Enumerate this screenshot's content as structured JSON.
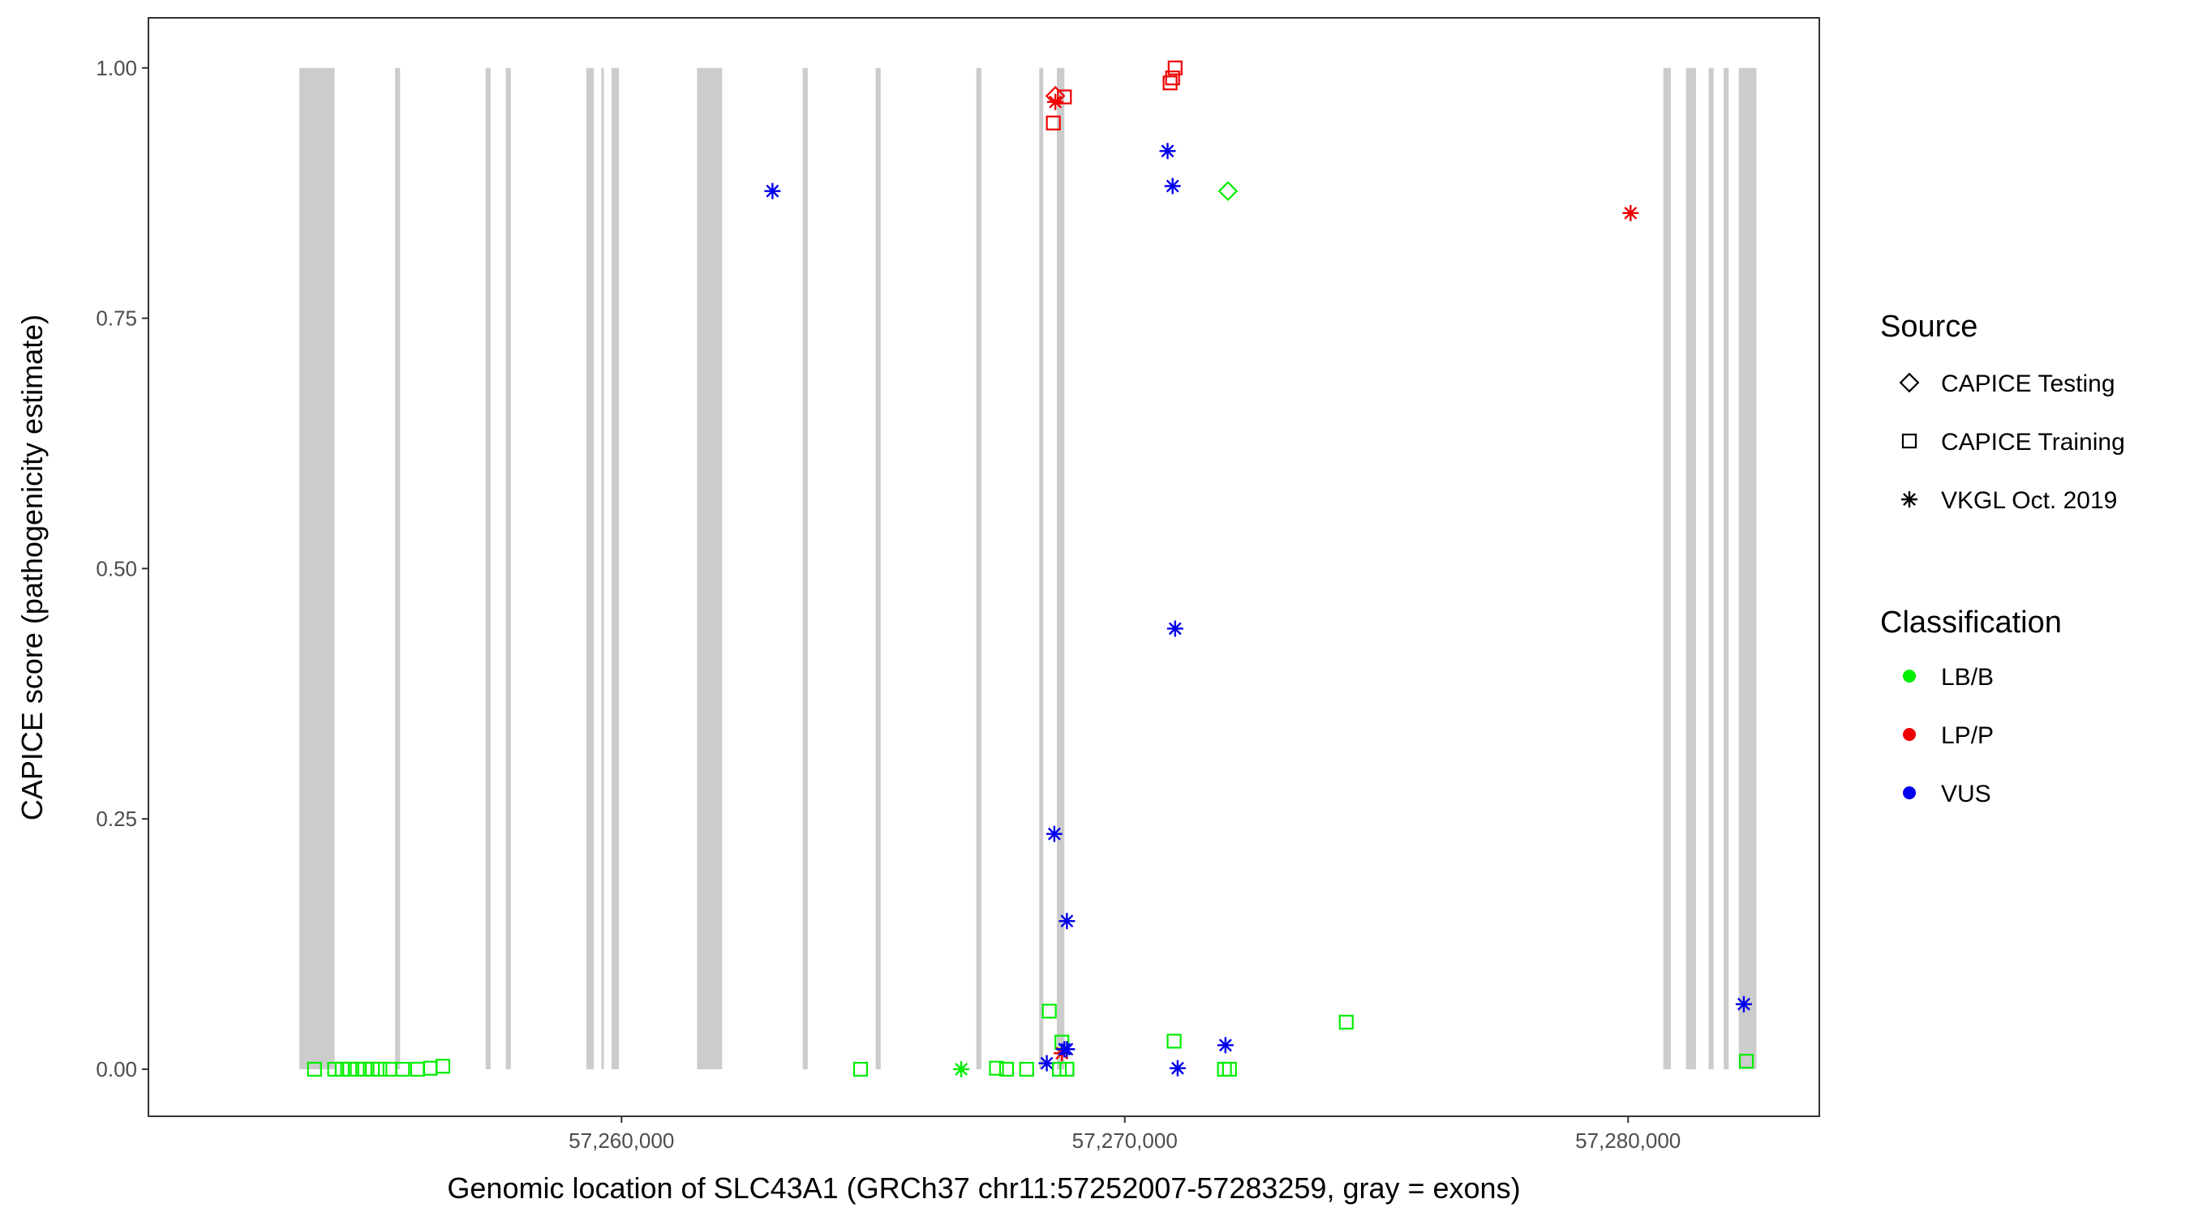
{
  "chart_data": {
    "type": "scatter",
    "title": "",
    "xlabel": "Genomic location of SLC43A1 (GRCh37 chr11:57252007-57283259, gray = exons)",
    "ylabel": "CAPICE score (pathogenicity estimate)",
    "xlim": [
      50600,
      83800
    ],
    "ylim": [
      -0.047,
      1.05
    ],
    "x_offset": 57200000,
    "x_ticks": [
      60000,
      70000,
      80000
    ],
    "x_tick_labels": [
      "57,260,000",
      "57,270,000",
      "57,280,000"
    ],
    "y_ticks": [
      0,
      0.25,
      0.5,
      0.75,
      1
    ],
    "y_tick_labels": [
      "0.00",
      "0.25",
      "0.50",
      "0.75",
      "1.00"
    ],
    "grid": false,
    "exons": [
      [
        53600,
        54300
      ],
      [
        55500,
        55600
      ],
      [
        57300,
        57400
      ],
      [
        57700,
        57800
      ],
      [
        59300,
        59450
      ],
      [
        59600,
        59650
      ],
      [
        59800,
        59950
      ],
      [
        61500,
        62000
      ],
      [
        63600,
        63700
      ],
      [
        65050,
        65150
      ],
      [
        67050,
        67150
      ],
      [
        68300,
        68380
      ],
      [
        68650,
        68800
      ],
      [
        80700,
        80850
      ],
      [
        81150,
        81350
      ],
      [
        81600,
        81700
      ],
      [
        81900,
        82000
      ],
      [
        82200,
        82550
      ]
    ],
    "points": [
      {
        "x": 53900,
        "y": 0.0,
        "source": "CAPICE Training",
        "cls": "LB/B"
      },
      {
        "x": 54300,
        "y": 0.0,
        "source": "CAPICE Training",
        "cls": "LB/B"
      },
      {
        "x": 54450,
        "y": 0.0,
        "source": "CAPICE Training",
        "cls": "LB/B"
      },
      {
        "x": 54600,
        "y": 0.0,
        "source": "CAPICE Training",
        "cls": "LB/B"
      },
      {
        "x": 54750,
        "y": 0.0,
        "source": "CAPICE Training",
        "cls": "LB/B"
      },
      {
        "x": 54900,
        "y": 0.0,
        "source": "CAPICE Training",
        "cls": "LB/B"
      },
      {
        "x": 55050,
        "y": 0.0,
        "source": "CAPICE Training",
        "cls": "LB/B"
      },
      {
        "x": 55200,
        "y": 0.0,
        "source": "CAPICE Training",
        "cls": "LB/B"
      },
      {
        "x": 55400,
        "y": 0.0,
        "source": "CAPICE Training",
        "cls": "LB/B"
      },
      {
        "x": 55650,
        "y": 0.0,
        "source": "CAPICE Training",
        "cls": "LB/B"
      },
      {
        "x": 55950,
        "y": 0.0,
        "source": "CAPICE Training",
        "cls": "LB/B"
      },
      {
        "x": 56200,
        "y": 0.001,
        "source": "CAPICE Training",
        "cls": "LB/B"
      },
      {
        "x": 56450,
        "y": 0.003,
        "source": "CAPICE Training",
        "cls": "LB/B"
      },
      {
        "x": 63000,
        "y": 0.877,
        "source": "VKGL Oct. 2019",
        "cls": "VUS"
      },
      {
        "x": 64750,
        "y": 0.0,
        "source": "CAPICE Training",
        "cls": "LB/B"
      },
      {
        "x": 66750,
        "y": 0.0,
        "source": "VKGL Oct. 2019",
        "cls": "LB/B"
      },
      {
        "x": 67450,
        "y": 0.001,
        "source": "CAPICE Training",
        "cls": "LB/B"
      },
      {
        "x": 67650,
        "y": 0.0,
        "source": "CAPICE Training",
        "cls": "LB/B"
      },
      {
        "x": 68050,
        "y": 0.0,
        "source": "CAPICE Training",
        "cls": "LB/B"
      },
      {
        "x": 68450,
        "y": 0.006,
        "source": "VKGL Oct. 2019",
        "cls": "VUS"
      },
      {
        "x": 68500,
        "y": 0.058,
        "source": "CAPICE Training",
        "cls": "LB/B"
      },
      {
        "x": 68580,
        "y": 0.945,
        "source": "CAPICE Training",
        "cls": "LP/P"
      },
      {
        "x": 68620,
        "y": 0.972,
        "source": "CAPICE Testing",
        "cls": "LP/P"
      },
      {
        "x": 68620,
        "y": 0.966,
        "source": "VKGL Oct. 2019",
        "cls": "LP/P"
      },
      {
        "x": 68600,
        "y": 0.235,
        "source": "VKGL Oct. 2019",
        "cls": "VUS"
      },
      {
        "x": 68750,
        "y": 0.027,
        "source": "CAPICE Training",
        "cls": "LB/B"
      },
      {
        "x": 68800,
        "y": 0.971,
        "source": "CAPICE Training",
        "cls": "LP/P"
      },
      {
        "x": 68750,
        "y": 0.016,
        "source": "VKGL Oct. 2019",
        "cls": "LP/P"
      },
      {
        "x": 68800,
        "y": 0.02,
        "source": "VKGL Oct. 2019",
        "cls": "VUS"
      },
      {
        "x": 68850,
        "y": 0.02,
        "source": "VKGL Oct. 2019",
        "cls": "VUS"
      },
      {
        "x": 68850,
        "y": 0.148,
        "source": "VKGL Oct. 2019",
        "cls": "VUS"
      },
      {
        "x": 68700,
        "y": 0.0,
        "source": "CAPICE Training",
        "cls": "LB/B"
      },
      {
        "x": 68850,
        "y": 0.0,
        "source": "CAPICE Training",
        "cls": "LB/B"
      },
      {
        "x": 70900,
        "y": 0.985,
        "source": "CAPICE Training",
        "cls": "LP/P"
      },
      {
        "x": 70950,
        "y": 0.99,
        "source": "CAPICE Training",
        "cls": "LP/P"
      },
      {
        "x": 71000,
        "y": 1.0,
        "source": "CAPICE Training",
        "cls": "LP/P"
      },
      {
        "x": 70850,
        "y": 0.917,
        "source": "VKGL Oct. 2019",
        "cls": "VUS"
      },
      {
        "x": 70950,
        "y": 0.882,
        "source": "VKGL Oct. 2019",
        "cls": "VUS"
      },
      {
        "x": 71000,
        "y": 0.44,
        "source": "VKGL Oct. 2019",
        "cls": "VUS"
      },
      {
        "x": 70980,
        "y": 0.028,
        "source": "CAPICE Training",
        "cls": "LB/B"
      },
      {
        "x": 71050,
        "y": 0.001,
        "source": "VKGL Oct. 2019",
        "cls": "VUS"
      },
      {
        "x": 72050,
        "y": 0.877,
        "source": "CAPICE Testing",
        "cls": "LB/B"
      },
      {
        "x": 72000,
        "y": 0.024,
        "source": "VKGL Oct. 2019",
        "cls": "VUS"
      },
      {
        "x": 71980,
        "y": 0.0,
        "source": "CAPICE Training",
        "cls": "LB/B"
      },
      {
        "x": 72080,
        "y": 0.0,
        "source": "CAPICE Training",
        "cls": "LB/B"
      },
      {
        "x": 74400,
        "y": 0.047,
        "source": "CAPICE Training",
        "cls": "LB/B"
      },
      {
        "x": 80050,
        "y": 0.855,
        "source": "VKGL Oct. 2019",
        "cls": "LP/P"
      },
      {
        "x": 82300,
        "y": 0.065,
        "source": "VKGL Oct. 2019",
        "cls": "VUS"
      },
      {
        "x": 82350,
        "y": 0.008,
        "source": "CAPICE Training",
        "cls": "LB/B"
      }
    ],
    "colors": {
      "LB/B": "#00ee00",
      "LP/P": "#ee0000",
      "VUS": "#0000ee"
    },
    "exon_color": "#cccccc",
    "legend": {
      "placement": "right",
      "source_title": "Source",
      "source_items": [
        {
          "label": "CAPICE Testing",
          "shape": "diamond"
        },
        {
          "label": "CAPICE Training",
          "shape": "square"
        },
        {
          "label": "VKGL Oct. 2019",
          "shape": "asterisk"
        }
      ],
      "class_title": "Classification",
      "class_items": [
        {
          "label": "LB/B",
          "key": "LB/B"
        },
        {
          "label": "LP/P",
          "key": "LP/P"
        },
        {
          "label": "VUS",
          "key": "VUS"
        }
      ]
    }
  }
}
